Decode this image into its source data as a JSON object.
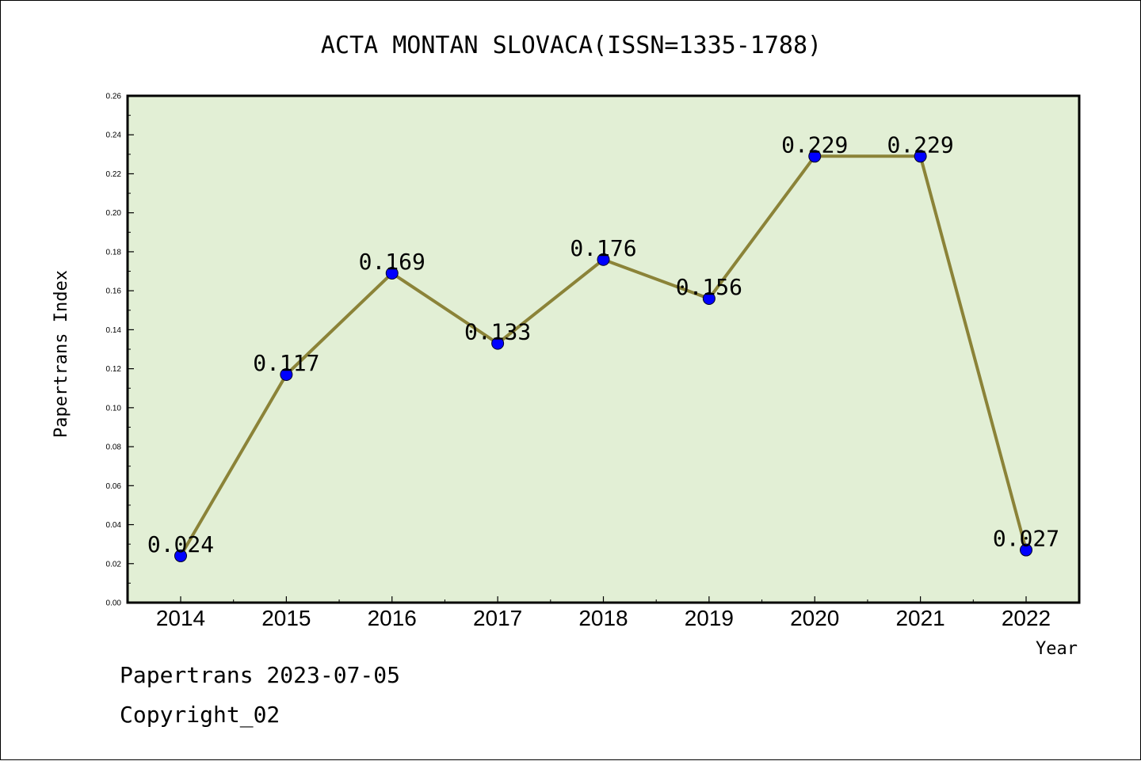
{
  "chart_data": {
    "type": "line",
    "title": "ACTA MONTAN SLOVACA(ISSN=1335-1788)",
    "xlabel": "Year",
    "ylabel": "Papertrans Index",
    "categories": [
      "2014",
      "2015",
      "2016",
      "2017",
      "2018",
      "2019",
      "2020",
      "2021",
      "2022"
    ],
    "values": [
      0.024,
      0.117,
      0.169,
      0.133,
      0.176,
      0.156,
      0.229,
      0.229,
      0.027
    ],
    "data_labels": [
      "0.024",
      "0.117",
      "0.169",
      "0.133",
      "0.176",
      "0.156",
      "0.229",
      "0.229",
      "0.027"
    ],
    "ylim": [
      0,
      0.26
    ],
    "yticks": [
      "0.00",
      "0.02",
      "0.04",
      "0.06",
      "0.08",
      "0.10",
      "0.12",
      "0.14",
      "0.16",
      "0.18",
      "0.20",
      "0.22",
      "0.24",
      "0.26"
    ],
    "grid": false,
    "legend": "none",
    "colors": {
      "plot_background": "#e2efd5",
      "line": "#8b8338",
      "marker": "#0000ff"
    }
  },
  "footer": {
    "line1": "Papertrans 2023-07-05",
    "line2": "Copyright_02"
  }
}
